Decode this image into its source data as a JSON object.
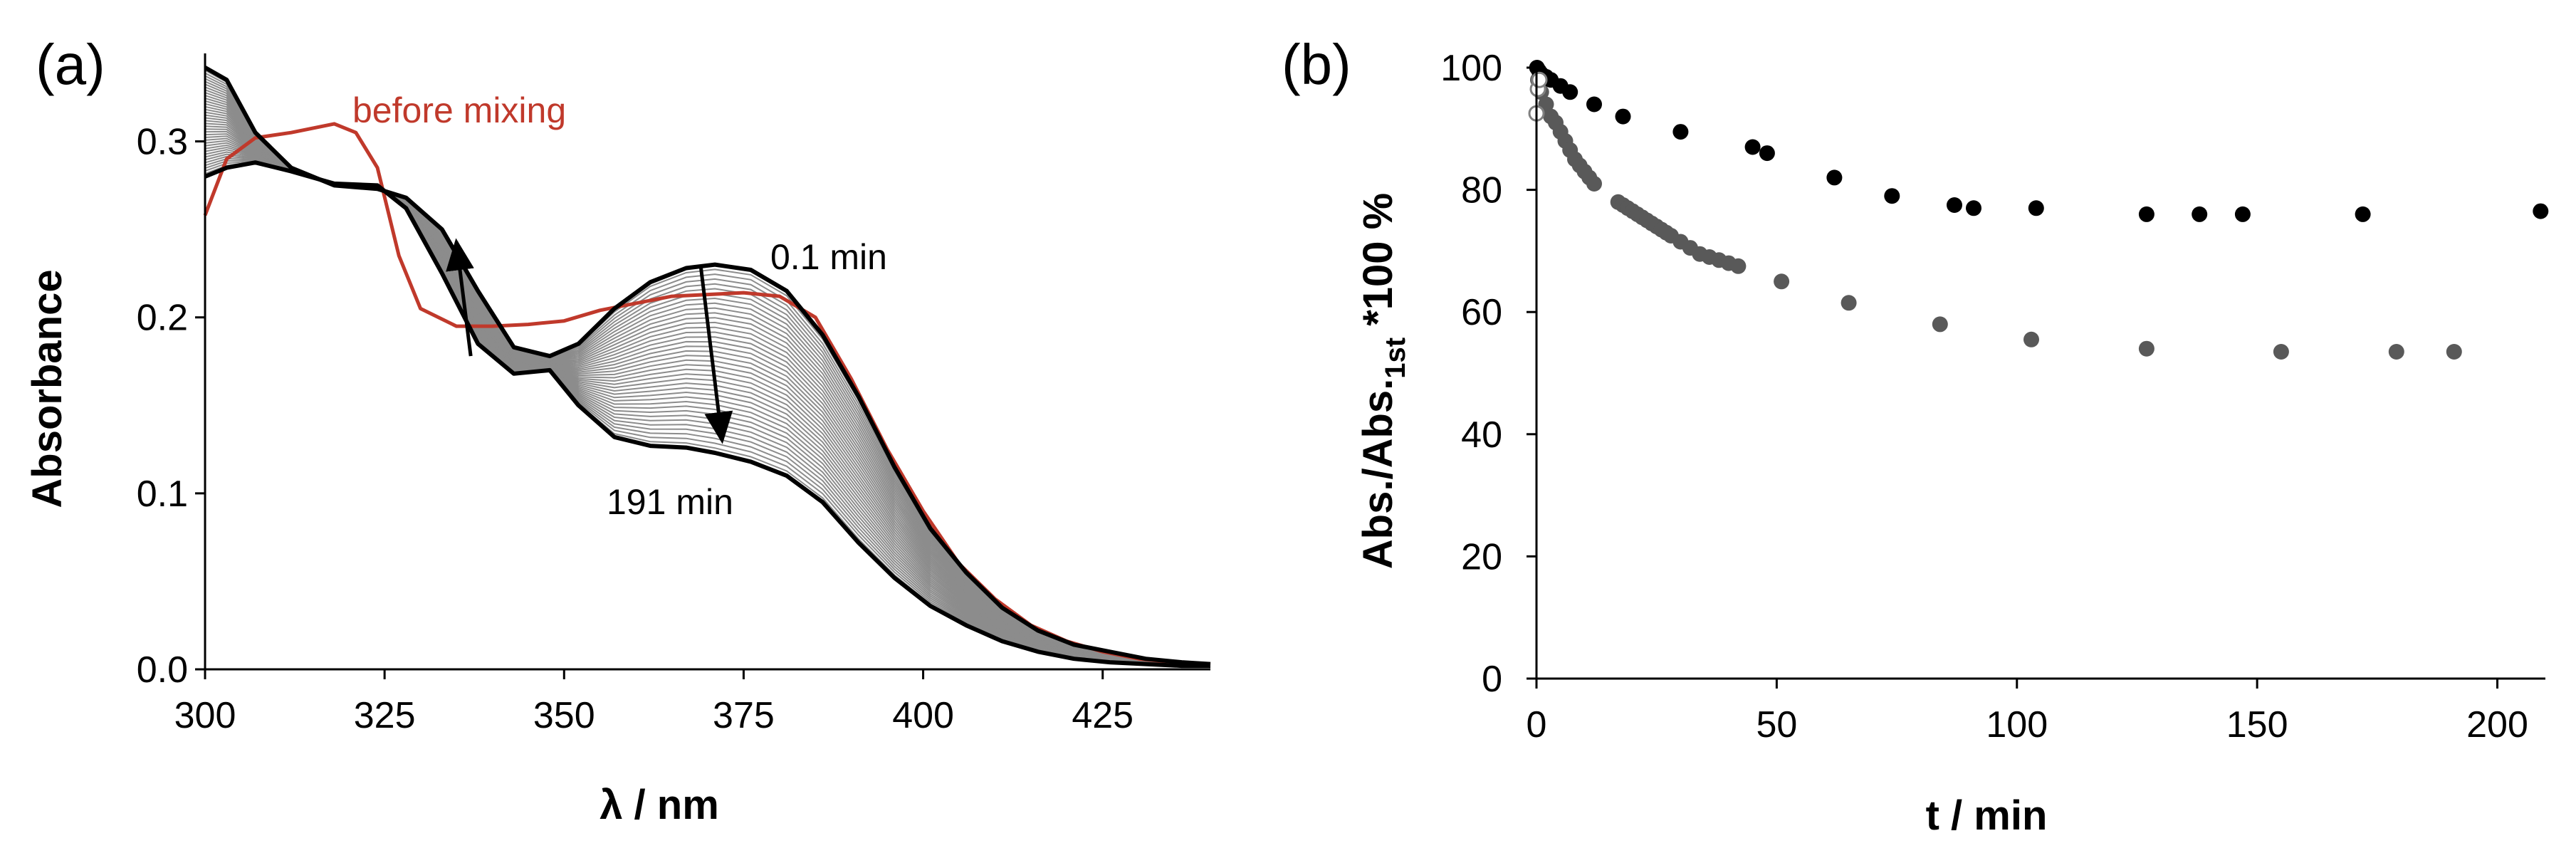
{
  "chart_data": [
    {
      "panel": "(a)",
      "type": "line",
      "title": "",
      "xlabel": "λ / nm",
      "ylabel": "Absorbance",
      "xlim": [
        300,
        440
      ],
      "ylim": [
        0.0,
        0.35
      ],
      "xticks": [
        300,
        325,
        350,
        375,
        400,
        425
      ],
      "xtick_labels": [
        "300",
        "325",
        "350",
        "375",
        "400",
        "425"
      ],
      "yticks": [
        0.0,
        0.1,
        0.2,
        0.3
      ],
      "ytick_labels": [
        "0.0",
        "0.1",
        "0.2",
        "0.3"
      ],
      "grid": false,
      "annotations": {
        "before_mixing": "before mixing",
        "first": "0.1 min",
        "last": "191 min"
      },
      "intermediate_trace_count": 38,
      "colors": {
        "first_last": "#000000",
        "intermediate": "#8c8c8c",
        "before_mixing": "#c0392b"
      },
      "series": [
        {
          "name": "0.1 min",
          "x": [
            300,
            303,
            307,
            312,
            318,
            324,
            328,
            333,
            338,
            343,
            348,
            352,
            357,
            362,
            367,
            371,
            376,
            381,
            386,
            391,
            396,
            401,
            406,
            411,
            416,
            421,
            426,
            431,
            436,
            440
          ],
          "y": [
            0.342,
            0.335,
            0.305,
            0.285,
            0.275,
            0.273,
            0.268,
            0.25,
            0.215,
            0.183,
            0.178,
            0.185,
            0.205,
            0.22,
            0.228,
            0.23,
            0.227,
            0.215,
            0.19,
            0.155,
            0.115,
            0.08,
            0.055,
            0.035,
            0.022,
            0.014,
            0.01,
            0.006,
            0.004,
            0.003
          ]
        },
        {
          "name": "191 min",
          "x": [
            300,
            303,
            307,
            312,
            318,
            324,
            328,
            333,
            338,
            343,
            348,
            352,
            357,
            362,
            367,
            371,
            376,
            381,
            386,
            391,
            396,
            401,
            406,
            411,
            416,
            421,
            426,
            431,
            436,
            440
          ],
          "y": [
            0.28,
            0.285,
            0.288,
            0.283,
            0.276,
            0.275,
            0.262,
            0.225,
            0.185,
            0.168,
            0.17,
            0.15,
            0.132,
            0.127,
            0.126,
            0.123,
            0.118,
            0.11,
            0.095,
            0.072,
            0.052,
            0.036,
            0.025,
            0.016,
            0.01,
            0.006,
            0.004,
            0.003,
            0.002,
            0.002
          ]
        },
        {
          "name": "before mixing",
          "x": [
            300,
            303,
            307,
            312,
            318,
            321,
            324,
            327,
            330,
            335,
            340,
            345,
            350,
            355,
            360,
            365,
            370,
            375,
            380,
            385,
            390,
            395,
            400,
            405,
            410,
            415,
            420,
            425,
            430,
            435,
            440
          ],
          "y": [
            0.258,
            0.29,
            0.302,
            0.305,
            0.31,
            0.305,
            0.285,
            0.235,
            0.205,
            0.195,
            0.195,
            0.196,
            0.198,
            0.204,
            0.208,
            0.212,
            0.213,
            0.214,
            0.212,
            0.2,
            0.165,
            0.125,
            0.09,
            0.06,
            0.04,
            0.025,
            0.016,
            0.01,
            0.006,
            0.004,
            0.003
          ]
        }
      ]
    },
    {
      "panel": "(b)",
      "type": "scatter",
      "title": "",
      "xlabel": "t / min",
      "ylabel": "Abs./Abs.",
      "ylabel_subscript": "1st",
      "ylabel_suffix": " *100 %",
      "xlim": [
        0,
        210
      ],
      "ylim": [
        0,
        100
      ],
      "xticks": [
        0,
        50,
        100,
        150,
        200
      ],
      "xtick_labels": [
        "0",
        "50",
        "100",
        "150",
        "200"
      ],
      "yticks": [
        0,
        20,
        40,
        60,
        80,
        100
      ],
      "ytick_labels": [
        "0",
        "20",
        "40",
        "60",
        "80",
        "100"
      ],
      "grid": false,
      "series": [
        {
          "name": "black series",
          "color": "#000000",
          "marker": "filled",
          "x": [
            0.1,
            0.5,
            1,
            2,
            3,
            5,
            7,
            12,
            18,
            30,
            45,
            48,
            62,
            74,
            87,
            91,
            104,
            127,
            138,
            147,
            172,
            209
          ],
          "y": [
            100,
            99.5,
            99,
            98.5,
            98,
            97,
            96,
            94,
            92,
            89.5,
            87,
            86,
            82,
            79,
            77.5,
            77,
            77,
            76,
            76,
            76,
            76,
            76.5
          ]
        },
        {
          "name": "grey series",
          "color": "#595959",
          "marker": "filled",
          "x": [
            0.3,
            1,
            2,
            3,
            4,
            5,
            6,
            7,
            8,
            9,
            10,
            11,
            12,
            17,
            18,
            19,
            20,
            21,
            22,
            23,
            24,
            25,
            26,
            27,
            28,
            30,
            32,
            34,
            36,
            38,
            40,
            42,
            51,
            65,
            84,
            103,
            127,
            155,
            179,
            191
          ],
          "y": [
            98,
            96,
            94,
            92,
            91,
            89.5,
            88,
            86.5,
            85,
            84,
            83,
            82,
            81,
            78,
            77.5,
            77,
            76.5,
            76,
            75.5,
            75,
            74.5,
            74,
            73.5,
            73,
            72.5,
            71.5,
            70.5,
            69.5,
            69,
            68.5,
            68,
            67.5,
            65,
            61.5,
            58,
            55.5,
            54,
            53.5,
            53.5,
            53.5
          ]
        },
        {
          "name": "open series",
          "color": "#808080",
          "marker": "open",
          "x": [
            0,
            0.3,
            0.6
          ],
          "y": [
            92.5,
            96.5,
            98
          ]
        }
      ]
    }
  ]
}
